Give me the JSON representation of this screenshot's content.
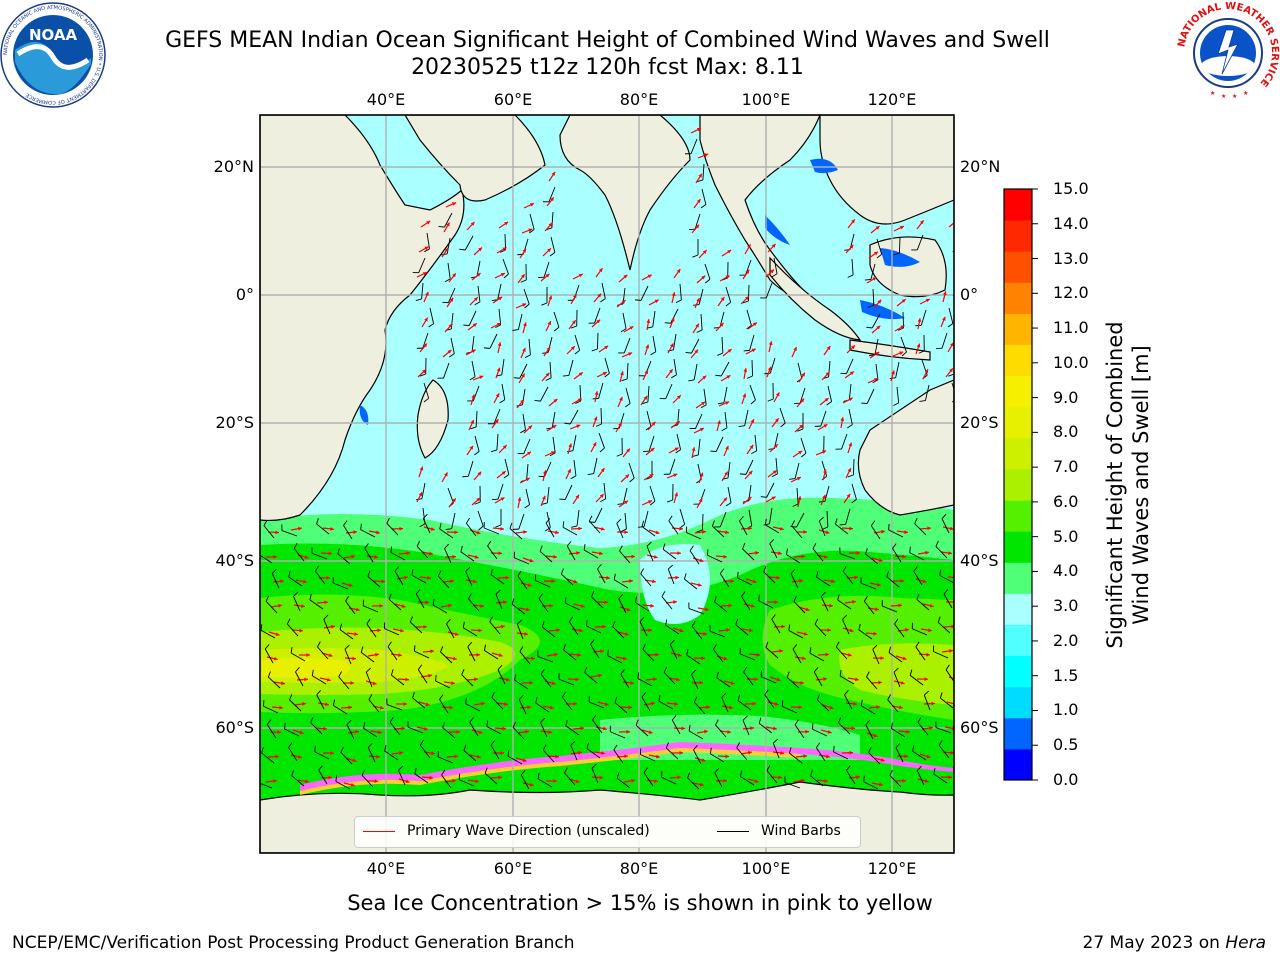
{
  "header": {
    "title_line1": "GEFS MEAN Indian Ocean Significant Height of Combined Wind Waves and Swell",
    "title_line2": "20230525 t12z 120h fcst   Max: 8.11",
    "noaa_logo_text": "NOAA",
    "noaa_ring_text": "NATIONAL OCEANIC AND ATMOSPHERIC ADMINISTRATION • U.S. DEPARTMENT OF COMMERCE",
    "nws_ring_text": "NATIONAL WEATHER SERVICE"
  },
  "map": {
    "lon_ticks": [
      "40°E",
      "60°E",
      "80°E",
      "100°E",
      "120°E"
    ],
    "lat_ticks": [
      "20°N",
      "0°",
      "20°S",
      "40°S",
      "60°S"
    ],
    "legend": [
      {
        "label": "Primary Wave Direction (unscaled)",
        "color": "#ff0000"
      },
      {
        "label": "Wind Barbs",
        "color": "#000000"
      }
    ],
    "colors": {
      "land": "#efefdf",
      "ice": "#ffffff",
      "grid": "#b0b0b0",
      "wave_arrow": "#ff0000",
      "wind_barb": "#000000"
    }
  },
  "colorbar": {
    "label_line1": "Significant Height of Combined",
    "label_line2": "Wind Waves and Swell [m]",
    "ticks": [
      "15.0",
      "14.0",
      "13.0",
      "12.0",
      "11.0",
      "10.0",
      "9.0",
      "8.0",
      "7.0",
      "6.0",
      "5.0",
      "4.0",
      "3.0",
      "2.0",
      "1.5",
      "1.0",
      "0.5",
      "0.0"
    ],
    "colors_bottom_to_top": [
      "#0000ff",
      "#0066ff",
      "#00dcff",
      "#00ffff",
      "#50ffff",
      "#aaffff",
      "#50ff78",
      "#00e600",
      "#55f000",
      "#aaf000",
      "#ccf000",
      "#e6f000",
      "#f5f000",
      "#ffdc00",
      "#ffb400",
      "#ff8200",
      "#ff5000",
      "#ff2800",
      "#ff0000"
    ]
  },
  "caption": "Sea Ice Concentration > 15% is shown in pink to yellow",
  "footer": {
    "left": "NCEP/EMC/Verification Post Processing Product Generation Branch",
    "right_prefix": "27 May 2023 on ",
    "right_emph": "Hera"
  }
}
